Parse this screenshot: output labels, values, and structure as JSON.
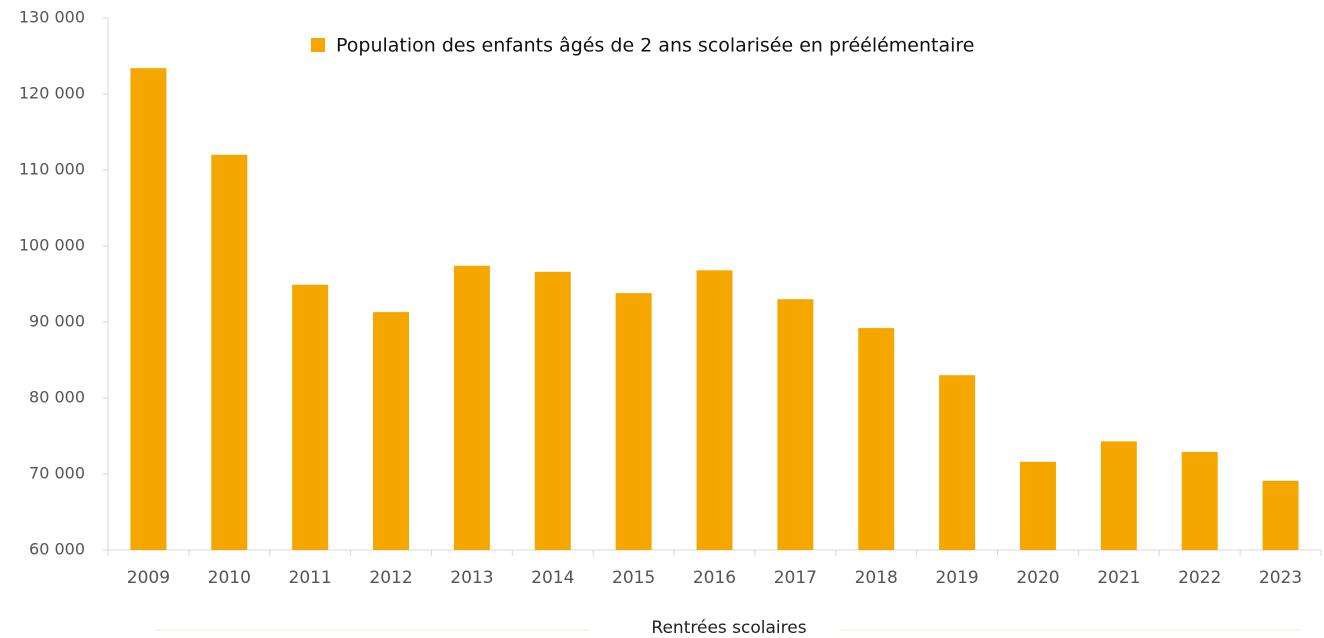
{
  "chart_data": {
    "type": "bar",
    "xlabel": "Rentrées scolaires",
    "categories": [
      "2009",
      "2010",
      "2011",
      "2012",
      "2013",
      "2014",
      "2015",
      "2016",
      "2017",
      "2018",
      "2019",
      "2020",
      "2021",
      "2022",
      "2023"
    ],
    "series": [
      {
        "name": "Population des enfants âgés de 2 ans scolarisée en préélémentaire",
        "color": "#f5a700",
        "values": [
          123400,
          112000,
          94900,
          91300,
          97400,
          96600,
          93800,
          96800,
          93000,
          89200,
          83000,
          71600,
          74300,
          72900,
          69100
        ]
      }
    ],
    "ylim": [
      60000,
      130000
    ],
    "yticks": [
      {
        "value": 60000,
        "label": "60 000"
      },
      {
        "value": 70000,
        "label": "70 000"
      },
      {
        "value": 80000,
        "label": "80 000"
      },
      {
        "value": 90000,
        "label": "90 000"
      },
      {
        "value": 100000,
        "label": "100 000"
      },
      {
        "value": 110000,
        "label": "110 000"
      },
      {
        "value": 120000,
        "label": "120 000"
      },
      {
        "value": 130000,
        "label": "130 000"
      }
    ],
    "grid": false,
    "legend": "top"
  }
}
